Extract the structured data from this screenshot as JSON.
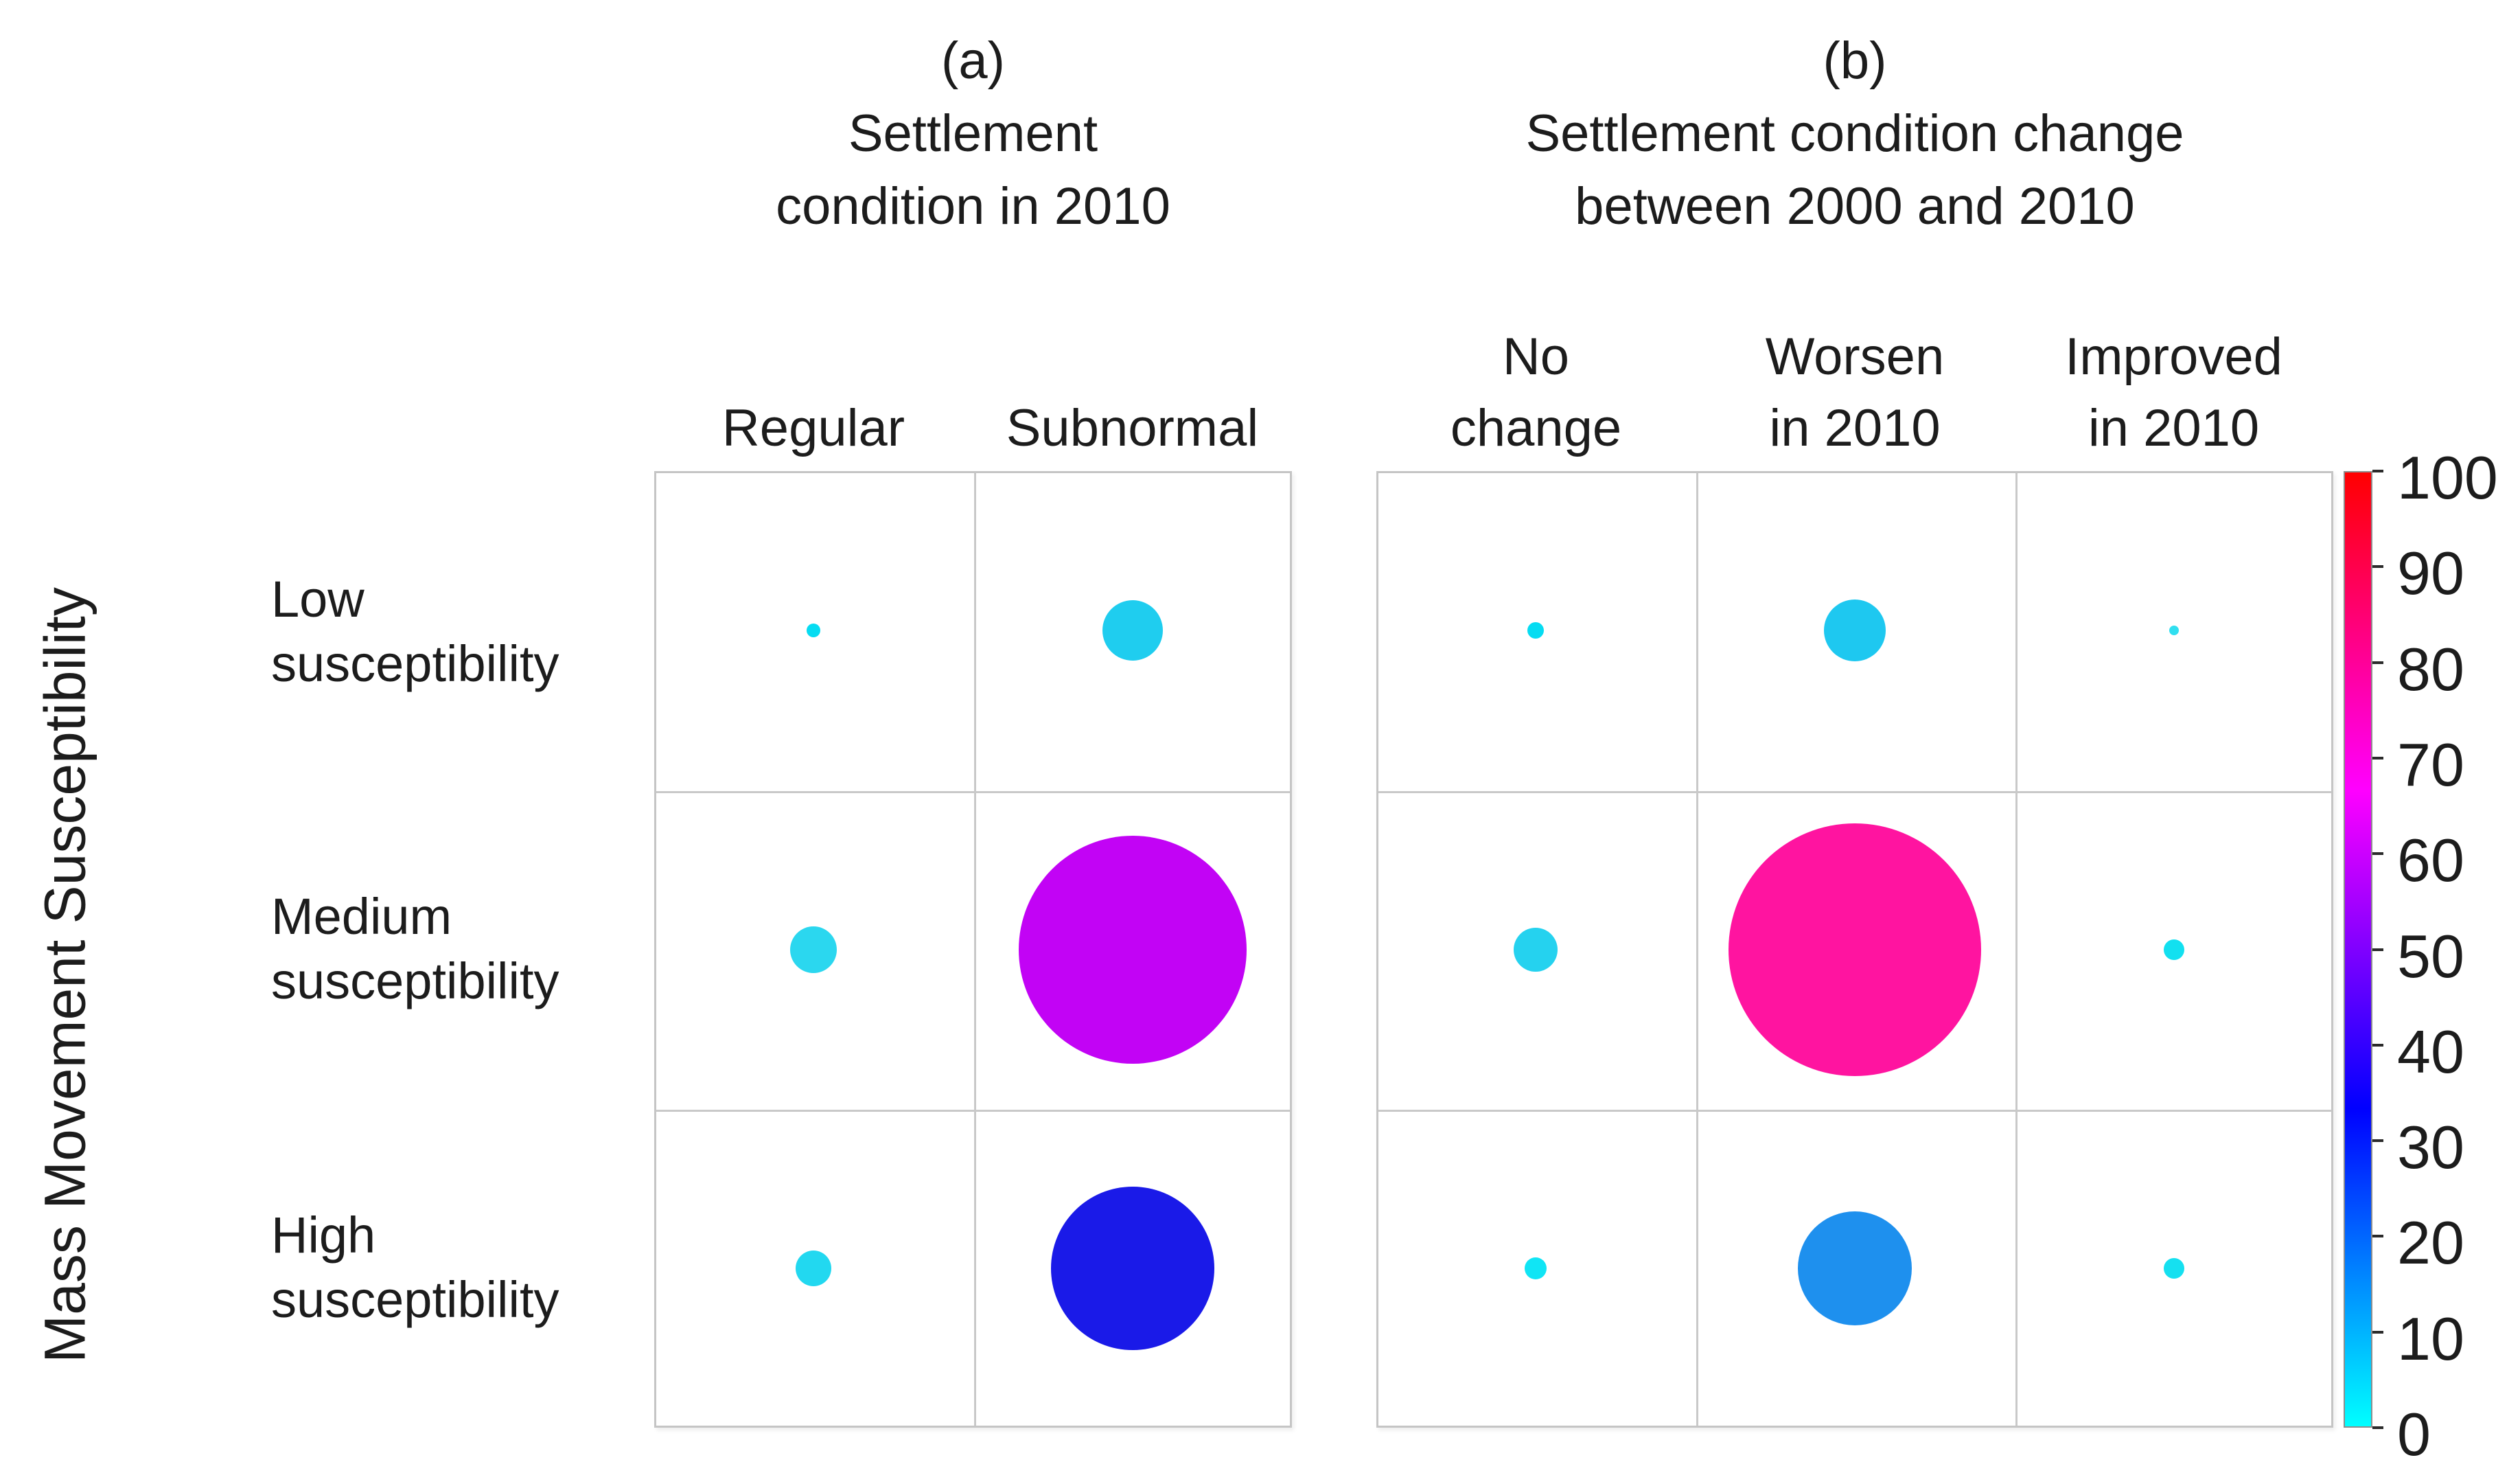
{
  "y_axis_label": "Mass Movement Susceptibility",
  "panel_a": {
    "tag": "(a)",
    "title_lines": [
      "Settlement",
      "condition in 2010"
    ],
    "columns": [
      "Regular",
      "Subnormal"
    ]
  },
  "panel_b": {
    "tag": "(b)",
    "title_lines": [
      "Settlement condition change",
      "between 2000 and  2010"
    ],
    "columns": [
      [
        "No",
        "change"
      ],
      [
        "Worsen",
        "in 2010"
      ],
      [
        "Improved",
        "in 2010"
      ]
    ]
  },
  "rows": [
    [
      "Low",
      "susceptibility"
    ],
    [
      "Medium",
      "susceptibility"
    ],
    [
      "High",
      "susceptibility"
    ]
  ],
  "colorbar": {
    "min": 0,
    "max": 100,
    "tick_values": [
      100,
      90,
      80,
      70,
      60,
      50,
      40,
      30,
      20,
      10,
      0
    ],
    "gradient_stops": [
      {
        "value": 0,
        "color": "#00ffff"
      },
      {
        "value": 33.3,
        "color": "#0000ff"
      },
      {
        "value": 66.7,
        "color": "#ff00ff"
      },
      {
        "value": 100,
        "color": "#ff0000"
      }
    ]
  },
  "chart_data": {
    "type": "bubble-matrix",
    "description": "Bubble matrix: bubble size = relative amount, bubble color = value on 0-100 colorbar scale",
    "row_categories": [
      "Low susceptibility",
      "Medium susceptibility",
      "High susceptibility"
    ],
    "panels": [
      {
        "id": "a",
        "title": "(a) Settlement condition in 2010",
        "columns": [
          "Regular",
          "Subnormal"
        ]
      },
      {
        "id": "b",
        "title": "(b) Settlement condition change between 2000 and 2010",
        "columns": [
          "No change",
          "Worsen in 2010",
          "Improved in 2010"
        ]
      }
    ],
    "colorbar_range": [
      0,
      100
    ],
    "bubbles": [
      {
        "panel": "a",
        "row": 0,
        "col": 0,
        "radius_px": 10,
        "color": "#06dcf2",
        "color_value_est": 4
      },
      {
        "panel": "a",
        "row": 0,
        "col": 1,
        "radius_px": 44,
        "color": "#1fcdef",
        "color_value_est": 8
      },
      {
        "panel": "a",
        "row": 1,
        "col": 0,
        "radius_px": 34,
        "color": "#2bd7ef",
        "color_value_est": 7
      },
      {
        "panel": "a",
        "row": 1,
        "col": 1,
        "radius_px": 166,
        "color": "#c203f5",
        "color_value_est": 58
      },
      {
        "panel": "a",
        "row": 2,
        "col": 0,
        "radius_px": 26,
        "color": "#22d8f0",
        "color_value_est": 6
      },
      {
        "panel": "a",
        "row": 2,
        "col": 1,
        "radius_px": 119,
        "color": "#1a1ae8",
        "color_value_est": 32
      },
      {
        "panel": "b",
        "row": 0,
        "col": 0,
        "radius_px": 12,
        "color": "#06dcf2",
        "color_value_est": 4
      },
      {
        "panel": "b",
        "row": 0,
        "col": 1,
        "radius_px": 45,
        "color": "#1ec8f0",
        "color_value_est": 8
      },
      {
        "panel": "b",
        "row": 0,
        "col": 2,
        "radius_px": 7,
        "color": "#30dff0",
        "color_value_est": 3
      },
      {
        "panel": "b",
        "row": 1,
        "col": 0,
        "radius_px": 32,
        "color": "#25d2ef",
        "color_value_est": 7
      },
      {
        "panel": "b",
        "row": 1,
        "col": 1,
        "radius_px": 184,
        "color": "#ff14a0",
        "color_value_est": 80
      },
      {
        "panel": "b",
        "row": 1,
        "col": 2,
        "radius_px": 15,
        "color": "#12e0f0",
        "color_value_est": 5
      },
      {
        "panel": "b",
        "row": 2,
        "col": 0,
        "radius_px": 16,
        "color": "#10e5f5",
        "color_value_est": 5
      },
      {
        "panel": "b",
        "row": 2,
        "col": 1,
        "radius_px": 83,
        "color": "#1e90ee",
        "color_value_est": 15
      },
      {
        "panel": "b",
        "row": 2,
        "col": 2,
        "radius_px": 15,
        "color": "#15e0f0",
        "color_value_est": 5
      }
    ]
  }
}
